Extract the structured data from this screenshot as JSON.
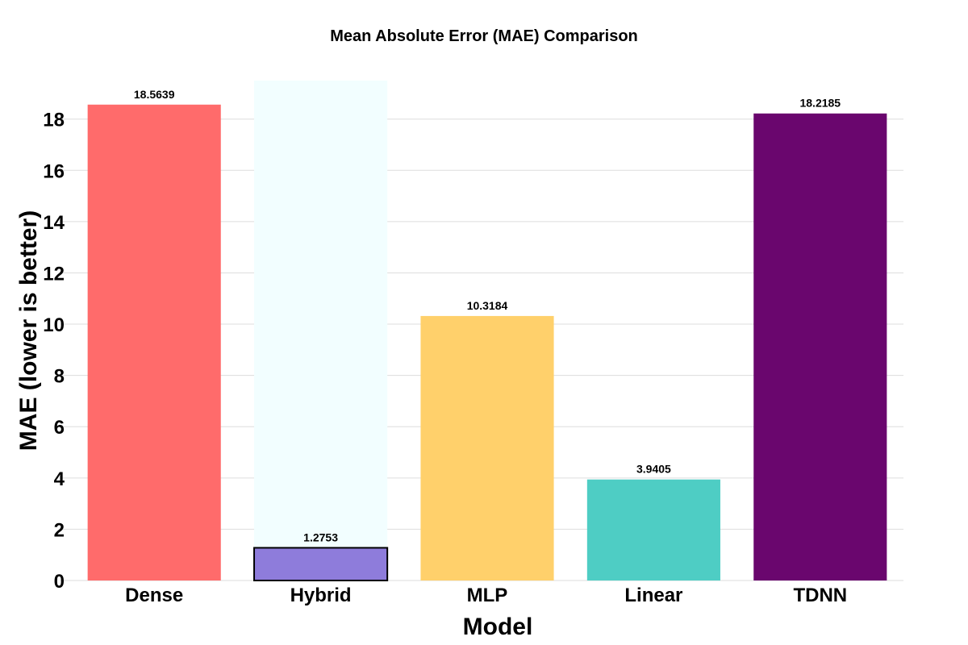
{
  "chart_data": {
    "type": "bar",
    "title": "Mean Absolute Error (MAE) Comparison",
    "xlabel": "Model",
    "ylabel": "MAE (lower is better)",
    "categories": [
      "Dense",
      "Hybrid",
      "MLP",
      "Linear",
      "TDNN"
    ],
    "values": [
      18.5639,
      1.2753,
      10.3184,
      3.9405,
      18.2185
    ],
    "value_labels": [
      "18.5639",
      "1.2753",
      "10.3184",
      "3.9405",
      "18.2185"
    ],
    "colors": [
      "#FF6B6B",
      "#8E7CDB",
      "#FFD06B",
      "#4ECDC4",
      "#6A066E"
    ],
    "highlight": {
      "category": "Hybrid",
      "band_color": "#F2FEFF",
      "outline_color": "#000000"
    },
    "ylim": [
      0,
      19.5
    ],
    "yticks": [
      0,
      2,
      4,
      6,
      8,
      10,
      12,
      14,
      16,
      18
    ],
    "grid": true,
    "grid_color": "#DDDDDD"
  }
}
